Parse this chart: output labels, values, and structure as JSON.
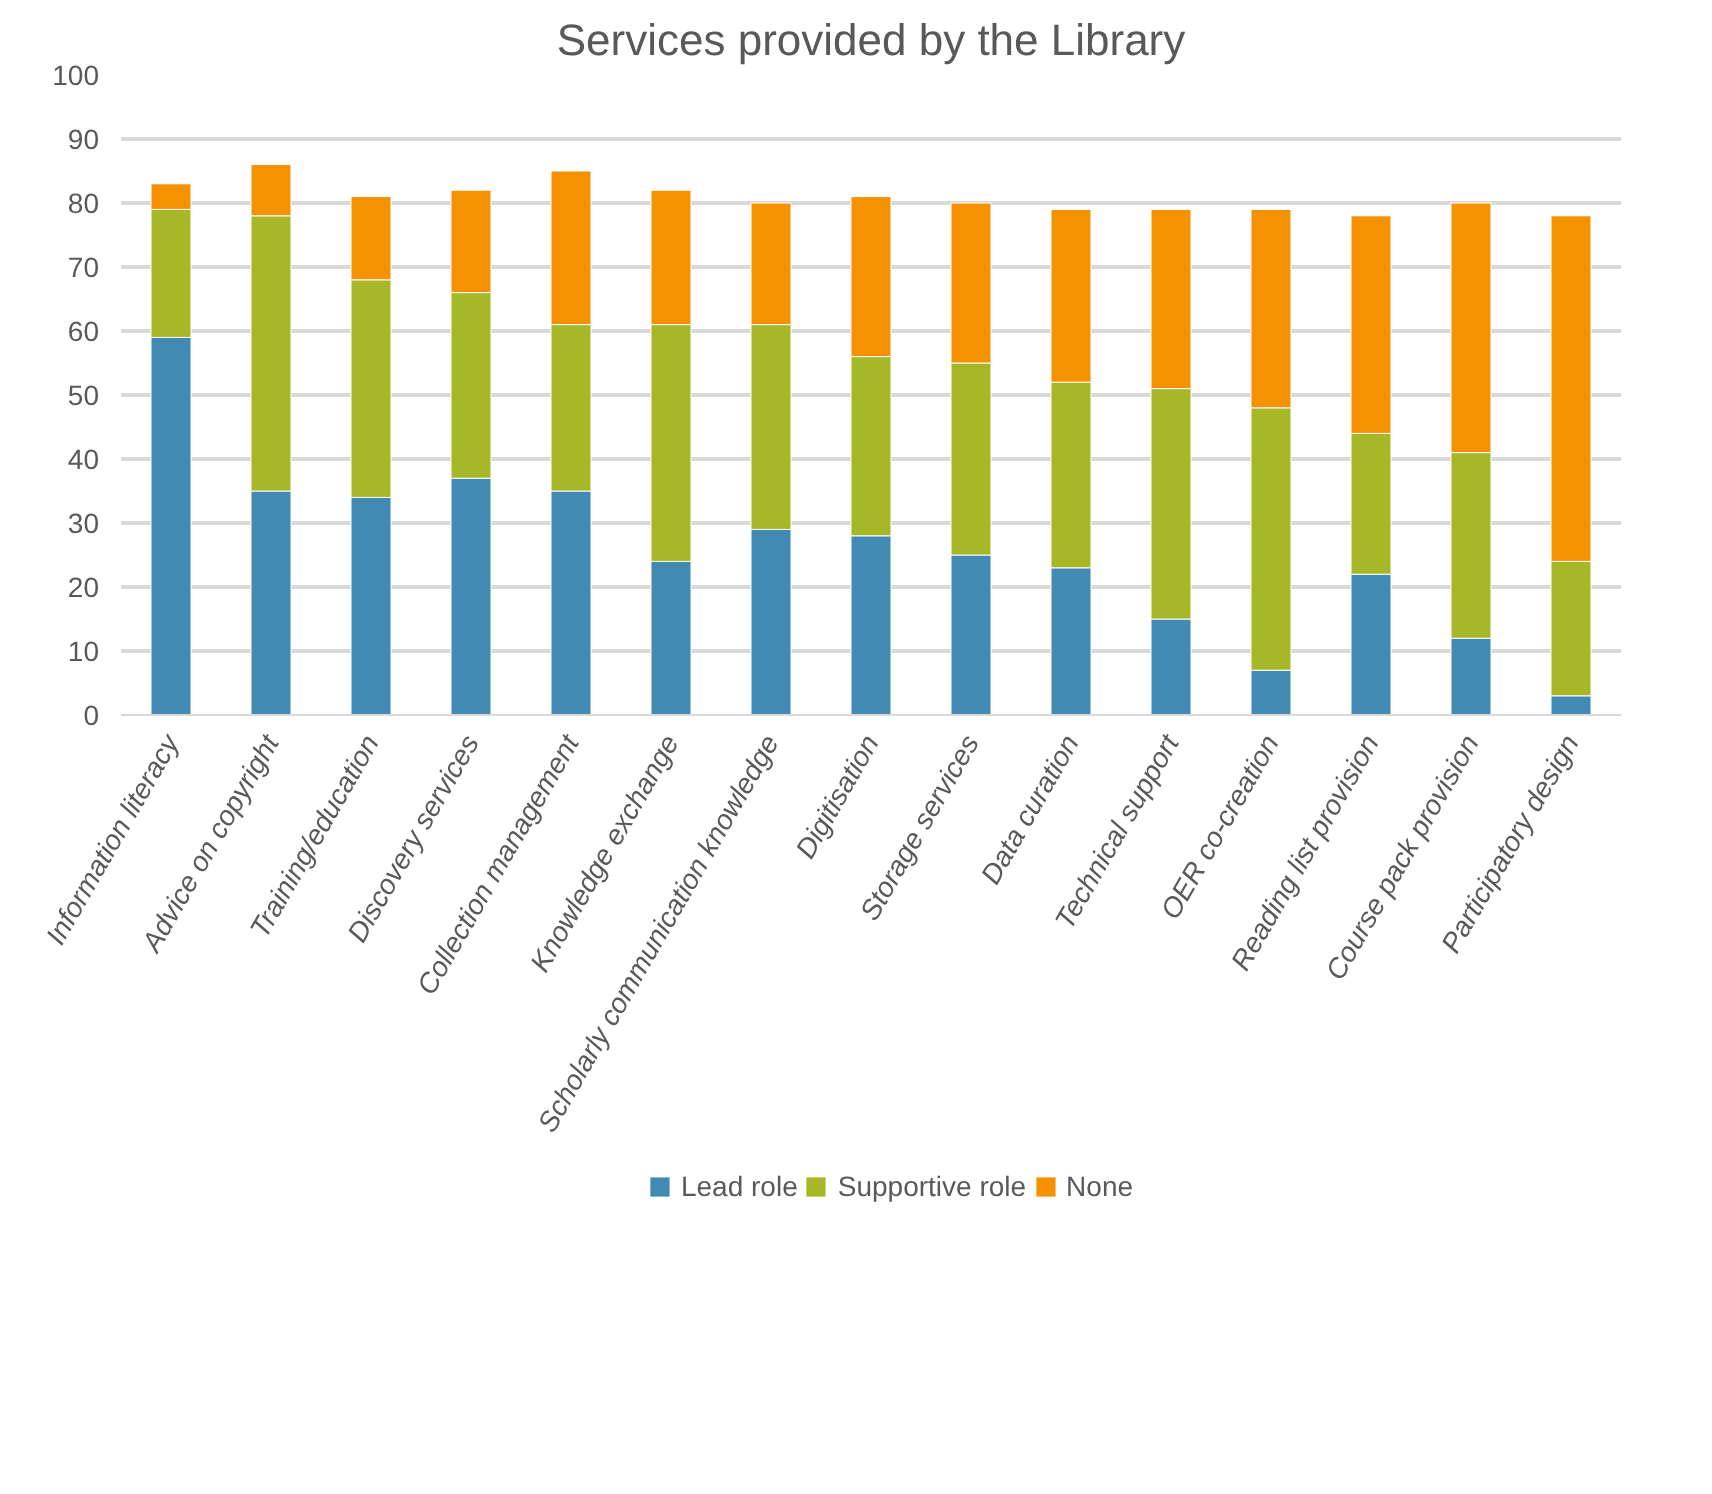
{
  "chart_data": {
    "type": "bar",
    "stacked": true,
    "title": "Services provided by the Library",
    "categories": [
      "Information literacy",
      "Advice on copyright",
      "Training/education",
      "Discovery services",
      "Collection management",
      "Knowledge exchange",
      "Scholarly communication knowledge",
      "Digitisation",
      "Storage services",
      "Data curation",
      "Technical support",
      "OER co-creation",
      "Reading list provision",
      "Course pack provision",
      "Participatory design"
    ],
    "series": [
      {
        "name": "Lead role",
        "color": "#418ab3",
        "values": [
          59,
          35,
          34,
          37,
          35,
          24,
          29,
          28,
          25,
          23,
          15,
          7,
          22,
          12,
          3
        ]
      },
      {
        "name": "Supportive role",
        "color": "#a6b727",
        "values": [
          20,
          43,
          34,
          29,
          26,
          37,
          32,
          28,
          30,
          29,
          36,
          41,
          22,
          29,
          21
        ]
      },
      {
        "name": "None",
        "color": "#f69200",
        "values": [
          4,
          8,
          13,
          16,
          24,
          21,
          19,
          25,
          25,
          27,
          28,
          31,
          34,
          39,
          54
        ]
      }
    ],
    "ylim": [
      0,
      100
    ],
    "yticks": [
      0,
      10,
      20,
      30,
      40,
      50,
      60,
      70,
      80,
      90,
      100
    ],
    "grid": "y",
    "legend": "bottom"
  }
}
